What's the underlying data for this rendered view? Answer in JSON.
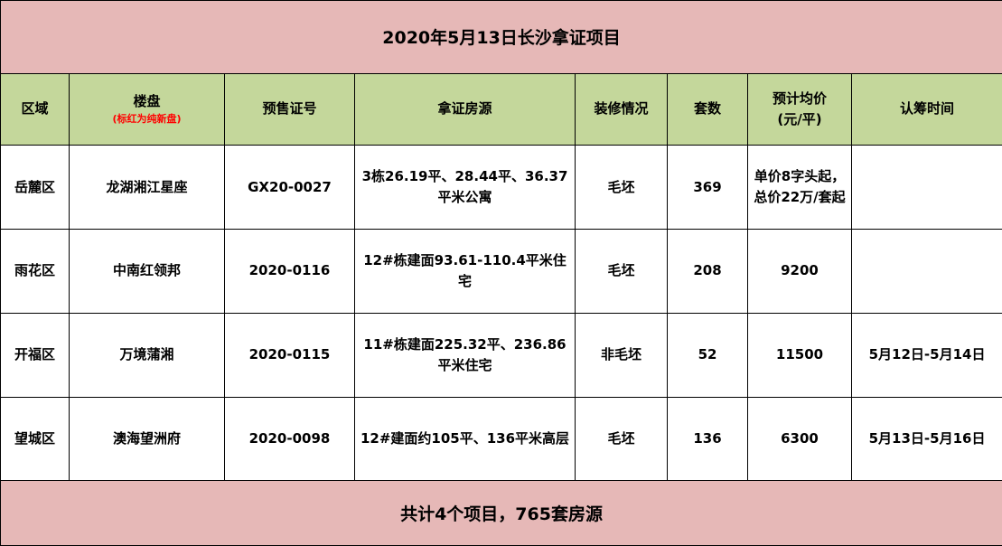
{
  "title": "2020年5月13日长沙拿证项目",
  "headers": {
    "district": "区域",
    "project": "楼盘",
    "project_note": "(标红为纯新盘)",
    "permit": "预售证号",
    "source": "拿证房源",
    "decoration": "装修情况",
    "units": "套数",
    "price": "预计均价(元/平)",
    "subscription": "认筹时间"
  },
  "rows": [
    {
      "district": "岳麓区",
      "project": "龙湖湘江星座",
      "permit": "GX20-0027",
      "source": "3栋26.19平、28.44平、36.37平米公寓",
      "decoration": "毛坯",
      "units": "369",
      "price": "单价8字头起，总价22万/套起",
      "subscription": ""
    },
    {
      "district": "雨花区",
      "project": "中南红领邦",
      "permit": "2020-0116",
      "source": "12#栋建面93.61-110.4平米住宅",
      "decoration": "毛坯",
      "units": "208",
      "price": "9200",
      "subscription": ""
    },
    {
      "district": "开福区",
      "project": "万境蒲湘",
      "permit": "2020-0115",
      "source": "11#栋建面225.32平、236.86平米住宅",
      "decoration": "非毛坯",
      "units": "52",
      "price": "11500",
      "subscription": "5月12日-5月14日"
    },
    {
      "district": "望城区",
      "project": "澳海望洲府",
      "permit": "2020-0098",
      "source": "12#建面约105平、136平米高层",
      "decoration": "毛坯",
      "units": "136",
      "price": "6300",
      "subscription": "5月13日-5月16日"
    }
  ],
  "footer": "共计4个项目，765套房源",
  "colors": {
    "title_bg": "#e6b8b7",
    "header_bg": "#c4d79b",
    "note_red": "#ff0000"
  }
}
